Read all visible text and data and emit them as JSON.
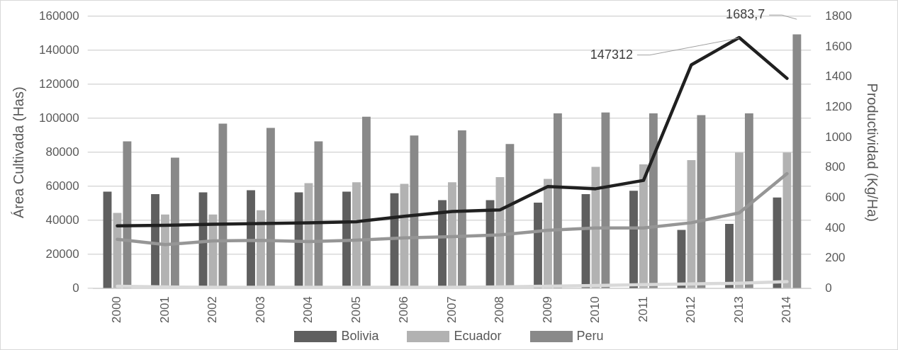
{
  "chart_data": {
    "type": "bar",
    "ylabel": "Área Cultivada (Has)",
    "y2label": "Productividad (Kg/Ha)",
    "categories": [
      "2000",
      "2001",
      "2002",
      "2003",
      "2004",
      "2005",
      "2006",
      "2007",
      "2008",
      "2009",
      "2010",
      "2011",
      "2012",
      "2013",
      "2014"
    ],
    "series": [
      {
        "name": "Bolivia",
        "color": "#5f5f5f",
        "values": [
          57000,
          55500,
          56500,
          57800,
          56500,
          57000,
          56000,
          52000,
          52000,
          50500,
          55500,
          57500,
          34500,
          38000,
          53500
        ]
      },
      {
        "name": "Ecuador",
        "color": "#b2b2b2",
        "values": [
          44500,
          43500,
          43500,
          46000,
          62000,
          62500,
          61500,
          62500,
          65500,
          64500,
          71500,
          73000,
          75500,
          80000,
          80000
        ]
      },
      {
        "name": "Peru",
        "color": "#898989",
        "values": [
          86500,
          77000,
          97000,
          94500,
          86500,
          101000,
          90000,
          93000,
          85000,
          103000,
          103500,
          103000,
          102000,
          103000,
          149500
        ]
      },
      {
        "type": "line",
        "axis": "y2",
        "color": "#202020",
        "values": [
          415,
          418,
          425,
          430,
          435,
          442,
          478,
          510,
          520,
          675,
          660,
          715,
          1480,
          1660,
          1390
        ]
      },
      {
        "type": "line",
        "axis": "y2",
        "color": "#969696",
        "values": [
          325,
          290,
          315,
          318,
          310,
          320,
          335,
          343,
          355,
          385,
          400,
          400,
          435,
          500,
          760
        ]
      },
      {
        "type": "line",
        "axis": "y2",
        "color": "#d9d9d9",
        "values": [
          15,
          10,
          8,
          8,
          8,
          8,
          8,
          8,
          10,
          15,
          20,
          25,
          30,
          35,
          45
        ]
      }
    ],
    "ylim": [
      0,
      160000
    ],
    "yticks": [
      0,
      20000,
      40000,
      60000,
      80000,
      100000,
      120000,
      140000,
      160000
    ],
    "y2lim": [
      0,
      1800
    ],
    "y2ticks": [
      0,
      200,
      400,
      600,
      800,
      1000,
      1200,
      1400,
      1600,
      1800
    ],
    "grid": "y",
    "legend": "bottom",
    "annotations": [
      {
        "text": "147312",
        "x": "2013",
        "y": 147312
      },
      "1683,7"
    ]
  }
}
